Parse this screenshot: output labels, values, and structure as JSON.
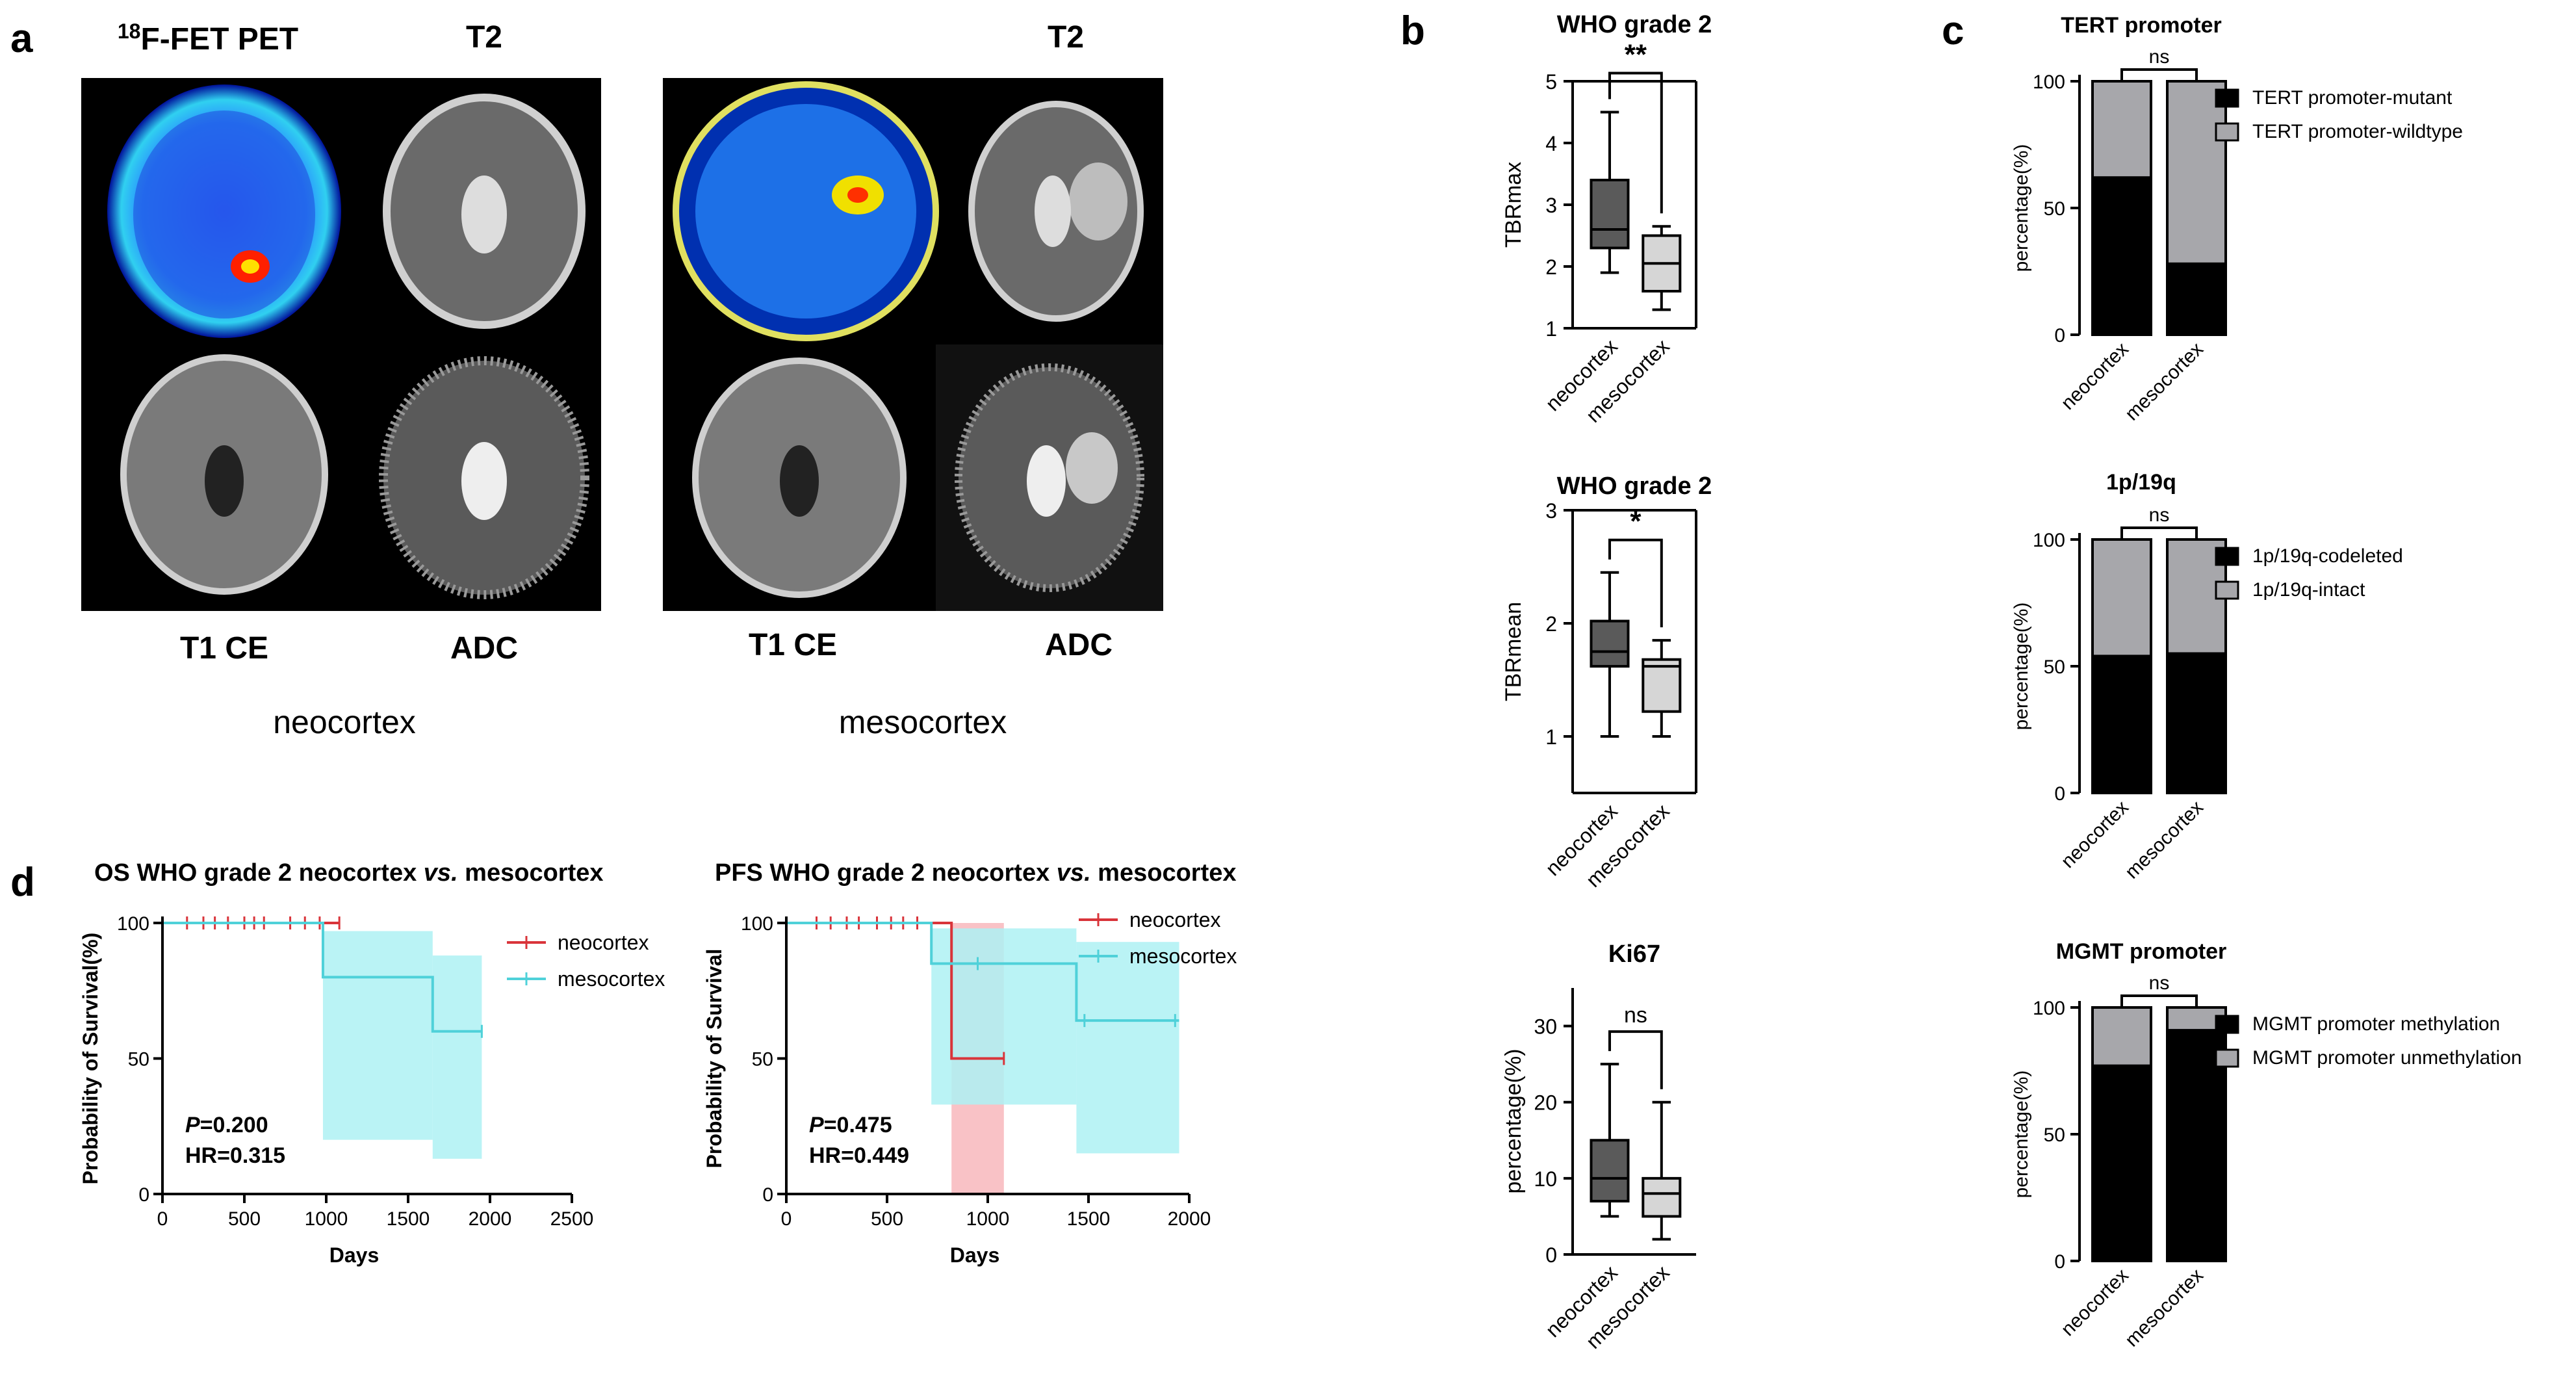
{
  "panel_letters": {
    "a": "a",
    "b": "b",
    "c": "c",
    "d": "d"
  },
  "panel_a": {
    "pet_sup": "18",
    "pet_label": "F-FET PET",
    "t2": "T2",
    "t1ce": "T1 CE",
    "adc": "ADC",
    "group_neo": "neocortex",
    "group_meso": "mesocortex"
  },
  "colors": {
    "dark_box": "#5a5a5a",
    "light_box": "#d6d6d6",
    "black_bar": "#000000",
    "gray_bar": "#a7a7ab",
    "neo_line": "#d9343a",
    "meso_line": "#4fd1d9",
    "meso_ci": "#aef1f3",
    "neo_ci": "#f7b3b8"
  },
  "chart_data": [
    {
      "id": "b1",
      "type": "box",
      "title": "WHO grade 2",
      "ylabel": "TBRmax",
      "categories": [
        "neocortex",
        "mesocortex"
      ],
      "ylim": [
        1,
        5
      ],
      "yticks": [
        "1",
        "2",
        "3",
        "4",
        "5"
      ],
      "ytick_values": [
        1,
        2,
        3,
        4,
        5
      ],
      "boxes": [
        {
          "min": 1.9,
          "q1": 2.3,
          "median": 2.6,
          "q3": 3.4,
          "max": 4.5
        },
        {
          "min": 1.3,
          "q1": 1.6,
          "median": 2.05,
          "q3": 2.5,
          "max": 2.65
        }
      ],
      "significance": "**"
    },
    {
      "id": "b2",
      "type": "box",
      "title": "WHO grade 2",
      "ylabel": "TBRmean",
      "categories": [
        "neocortex",
        "mesocortex"
      ],
      "ylim": [
        0.5,
        3
      ],
      "yticks": [
        "1",
        "2",
        "3"
      ],
      "ytick_values": [
        1,
        2,
        3
      ],
      "boxes": [
        {
          "min": 1.0,
          "q1": 1.62,
          "median": 1.75,
          "q3": 2.02,
          "max": 2.45
        },
        {
          "min": 1.0,
          "q1": 1.22,
          "median": 1.62,
          "q3": 1.68,
          "max": 1.85
        }
      ],
      "significance": "*"
    },
    {
      "id": "b3",
      "type": "box",
      "title": "Ki67",
      "ylabel": "percentage(%)",
      "categories": [
        "neocortex",
        "mesocortex"
      ],
      "ylim": [
        0,
        35
      ],
      "yticks": [
        "0",
        "10",
        "20",
        "30"
      ],
      "ytick_values": [
        0,
        10,
        20,
        30
      ],
      "boxes": [
        {
          "min": 5,
          "q1": 7,
          "median": 10,
          "q3": 15,
          "max": 25
        },
        {
          "min": 2,
          "q1": 5,
          "median": 8,
          "q3": 10,
          "max": 20
        }
      ],
      "significance": "ns"
    },
    {
      "id": "c1",
      "type": "stacked_bar",
      "title": "TERT promoter",
      "ylabel": "percentage(%)",
      "categories": [
        "neocortex",
        "mesocortex"
      ],
      "ylim": [
        0,
        100
      ],
      "yticks": [
        "0",
        "50",
        "100"
      ],
      "ytick_values": [
        0,
        50,
        100
      ],
      "series": [
        {
          "name": "TERT promoter-mutant",
          "values": [
            62,
            28
          ]
        },
        {
          "name": "TERT promoter-wildtype",
          "values": [
            38,
            72
          ]
        }
      ],
      "significance": "ns"
    },
    {
      "id": "c2",
      "type": "stacked_bar",
      "title": "1p/19q",
      "ylabel": "percentage(%)",
      "categories": [
        "neocortex",
        "mesocortex"
      ],
      "ylim": [
        0,
        100
      ],
      "yticks": [
        "0",
        "50",
        "100"
      ],
      "ytick_values": [
        0,
        50,
        100
      ],
      "series": [
        {
          "name": "1p/19q-codeleted",
          "values": [
            54,
            55
          ]
        },
        {
          "name": "1p/19q-intact",
          "values": [
            46,
            45
          ]
        }
      ],
      "significance": "ns"
    },
    {
      "id": "c3",
      "type": "stacked_bar",
      "title": "MGMT promoter",
      "ylabel": "percentage(%)",
      "categories": [
        "neocortex",
        "mesocortex"
      ],
      "ylim": [
        0,
        100
      ],
      "yticks": [
        "0",
        "50",
        "100"
      ],
      "ytick_values": [
        0,
        50,
        100
      ],
      "series": [
        {
          "name": "MGMT promoter methylation",
          "values": [
            77,
            91
          ]
        },
        {
          "name": "MGMT promoter unmethylation",
          "values": [
            23,
            9
          ]
        }
      ],
      "significance": "ns"
    },
    {
      "id": "d1",
      "type": "line",
      "title_pre": "OS WHO grade 2  neocortex ",
      "title_it": "vs.",
      "title_post": " mesocortex",
      "xlabel": "Days",
      "ylabel": "Probability of Survival(%)",
      "xlim": [
        0,
        2500
      ],
      "xticks": [
        "0",
        "500",
        "1000",
        "1500",
        "2000",
        "2500"
      ],
      "xtick_values": [
        0,
        500,
        1000,
        1500,
        2000,
        2500
      ],
      "ylim": [
        0,
        100
      ],
      "yticks": [
        "0",
        "50",
        "100"
      ],
      "ytick_values": [
        0,
        50,
        100
      ],
      "series": [
        {
          "name": "neocortex",
          "x": [
            0,
            1080
          ],
          "y": [
            100,
            100
          ],
          "censor_x": [
            150,
            250,
            320,
            400,
            500,
            560,
            620,
            780,
            870,
            960,
            1080
          ]
        },
        {
          "name": "mesocortex",
          "x": [
            0,
            980,
            980,
            1650,
            1650,
            1950
          ],
          "y": [
            100,
            100,
            80,
            80,
            60,
            60
          ],
          "censor_x": [
            1950
          ],
          "ci": [
            {
              "x0": 980,
              "x1": 1650,
              "lo": 20,
              "hi": 97
            },
            {
              "x0": 1650,
              "x1": 1950,
              "lo": 13,
              "hi": 88
            }
          ]
        }
      ],
      "p_label": "P",
      "p_value": "=0.200",
      "hr": "HR=0.315"
    },
    {
      "id": "d2",
      "type": "line",
      "title_pre": "PFS WHO grade 2 neocortex ",
      "title_it": "vs.",
      "title_post": " mesocortex",
      "xlabel": "Days",
      "ylabel": "Probability of Survival",
      "xlim": [
        0,
        2000
      ],
      "xticks": [
        "0",
        "500",
        "1000",
        "1500",
        "2000"
      ],
      "xtick_values": [
        0,
        500,
        1000,
        1500,
        2000
      ],
      "ylim": [
        0,
        100
      ],
      "yticks": [
        "0",
        "50",
        "100"
      ],
      "ytick_values": [
        0,
        50,
        100
      ],
      "series": [
        {
          "name": "neocortex",
          "x": [
            0,
            820,
            820,
            1080
          ],
          "y": [
            100,
            100,
            50,
            50
          ],
          "censor_x": [
            150,
            220,
            300,
            360,
            450,
            520,
            580,
            650,
            1080
          ],
          "ci": [
            {
              "x0": 820,
              "x1": 1080,
              "lo": 0,
              "hi": 100
            }
          ]
        },
        {
          "name": "mesocortex",
          "x": [
            0,
            720,
            720,
            1440,
            1440,
            1950
          ],
          "y": [
            100,
            100,
            85,
            85,
            64,
            64
          ],
          "censor_x": [
            950,
            1480,
            1930
          ],
          "ci": [
            {
              "x0": 720,
              "x1": 1440,
              "lo": 33,
              "hi": 98
            },
            {
              "x0": 1440,
              "x1": 1950,
              "lo": 15,
              "hi": 93
            }
          ]
        }
      ],
      "p_label": "P",
      "p_value": "=0.475",
      "hr": "HR=0.449"
    }
  ]
}
